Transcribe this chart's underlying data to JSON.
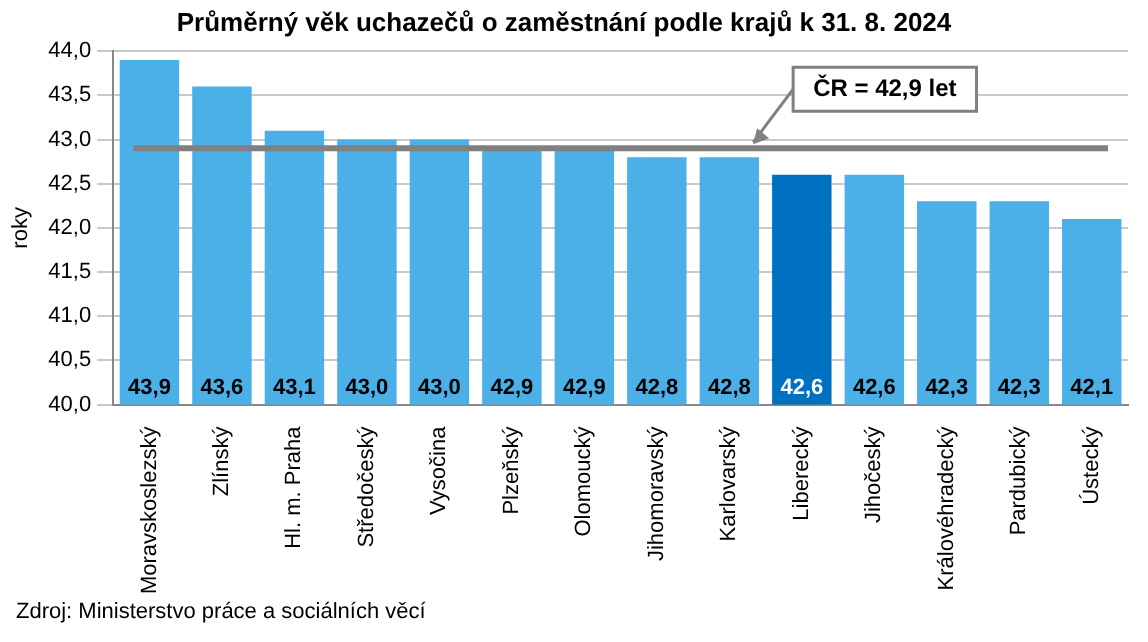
{
  "chart_data": {
    "type": "bar",
    "title": "Průměrný věk uchazečů o zaměstnání podle krajů k 31. 8. 2024",
    "ylabel": "roky",
    "categories": [
      "Moravskoslezský",
      "Zlínský",
      "Hl. m. Praha",
      "Středočeský",
      "Vysočina",
      "Plzeňský",
      "Olomoucký",
      "Jihomoravský",
      "Karlovarský",
      "Liberecký",
      "Jihočeský",
      "Královéhradecký",
      "Pardubický",
      "Ústecký"
    ],
    "values": [
      43.9,
      43.6,
      43.1,
      43.0,
      43.0,
      42.9,
      42.9,
      42.8,
      42.8,
      42.6,
      42.6,
      42.3,
      42.3,
      42.1
    ],
    "value_labels": [
      "43,9",
      "43,6",
      "43,1",
      "43,0",
      "43,0",
      "42,9",
      "42,9",
      "42,8",
      "42,8",
      "42,6",
      "42,6",
      "42,3",
      "42,3",
      "42,1"
    ],
    "colors": [
      "#4bafe8",
      "#4bafe8",
      "#4bafe8",
      "#4bafe8",
      "#4bafe8",
      "#4bafe8",
      "#4bafe8",
      "#4bafe8",
      "#4bafe8",
      "#0070c0",
      "#4bafe8",
      "#4bafe8",
      "#4bafe8",
      "#4bafe8"
    ],
    "ylim": [
      40,
      44
    ],
    "yticks": [
      {
        "value": 40,
        "label": "40,0"
      },
      {
        "value": 40.5,
        "label": "40,5"
      },
      {
        "value": 41,
        "label": "41,0"
      },
      {
        "value": 41.5,
        "label": "41,5"
      },
      {
        "value": 42,
        "label": "42,0"
      },
      {
        "value": 42.5,
        "label": "42,5"
      },
      {
        "value": 43,
        "label": "43,0"
      },
      {
        "value": 43.5,
        "label": "43,5"
      },
      {
        "value": 44,
        "label": "44,0"
      }
    ],
    "grid": "y",
    "legend": false,
    "ref_lines": [
      {
        "axis": "y",
        "value": 42.9,
        "label": "ČR = 42,9 let",
        "color": "#808080"
      }
    ],
    "annotations": [
      "Zdroj: Ministerstvo práce a sociálních věcí"
    ]
  }
}
